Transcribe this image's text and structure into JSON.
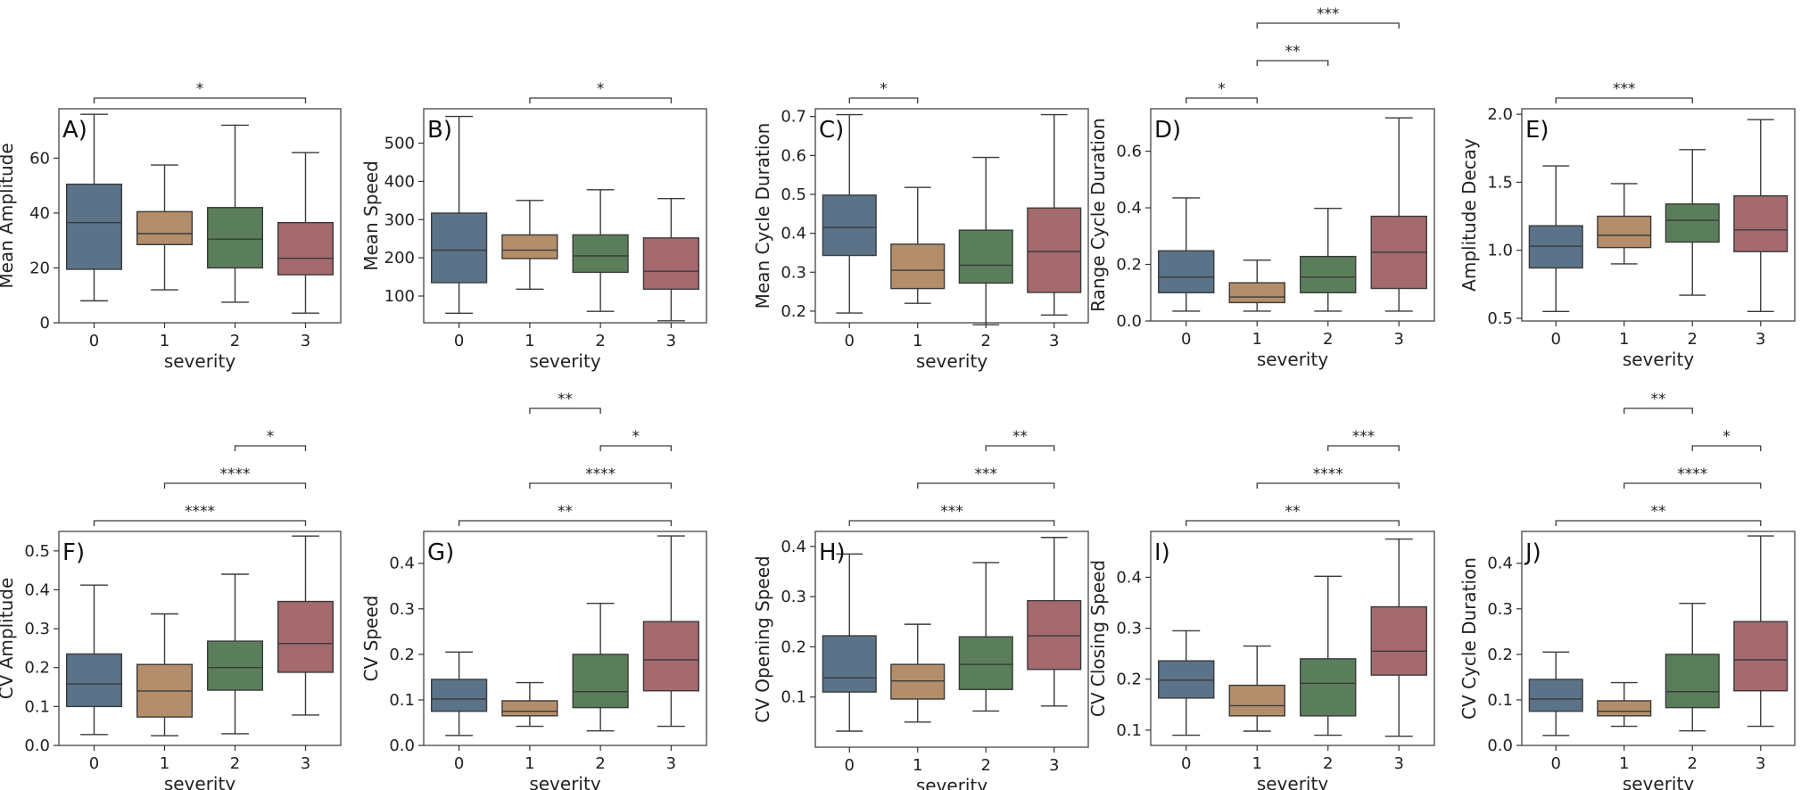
{
  "chart_data": [
    {
      "type": "box",
      "panel_label": "A)",
      "ylabel": "Mean Amplitude",
      "xlabel": "severity",
      "categories": [
        "0",
        "1",
        "2",
        "3"
      ],
      "ylim": [
        0,
        78
      ],
      "yticks": [
        0,
        20,
        40,
        60
      ],
      "boxes": [
        {
          "min": 8,
          "q1": 19.5,
          "median": 36.5,
          "q3": 50.5,
          "max": 76
        },
        {
          "min": 12,
          "q1": 28.5,
          "median": 32.5,
          "q3": 40.5,
          "max": 57.5
        },
        {
          "min": 7.5,
          "q1": 20,
          "median": 30.5,
          "q3": 42,
          "max": 72
        },
        {
          "min": 3.5,
          "q1": 17.5,
          "median": 23.5,
          "q3": 36.5,
          "max": 62
        }
      ],
      "significance": [
        {
          "from": 0,
          "to": 3,
          "label": "*"
        }
      ]
    },
    {
      "type": "box",
      "panel_label": "B)",
      "ylabel": "Mean Speed",
      "xlabel": "severity",
      "categories": [
        "0",
        "1",
        "2",
        "3"
      ],
      "ylim": [
        30,
        590
      ],
      "yticks": [
        100,
        200,
        300,
        400,
        500
      ],
      "boxes": [
        {
          "min": 55,
          "q1": 135,
          "median": 220,
          "q3": 317,
          "max": 570
        },
        {
          "min": 118,
          "q1": 198,
          "median": 220,
          "q3": 260,
          "max": 350
        },
        {
          "min": 60,
          "q1": 162,
          "median": 205,
          "q3": 260,
          "max": 378
        },
        {
          "min": 35,
          "q1": 118,
          "median": 165,
          "q3": 252,
          "max": 355
        }
      ],
      "significance": [
        {
          "from": 1,
          "to": 3,
          "label": "*"
        }
      ]
    },
    {
      "type": "box",
      "panel_label": "C)",
      "ylabel": "Mean Cycle Duration",
      "xlabel": "severity",
      "categories": [
        "0",
        "1",
        "2",
        "3"
      ],
      "ylim": [
        0.17,
        0.72
      ],
      "yticks": [
        0.2,
        0.3,
        0.4,
        0.5,
        0.6,
        0.7
      ],
      "boxes": [
        {
          "min": 0.195,
          "q1": 0.343,
          "median": 0.415,
          "q3": 0.498,
          "max": 0.705
        },
        {
          "min": 0.22,
          "q1": 0.258,
          "median": 0.305,
          "q3": 0.372,
          "max": 0.518
        },
        {
          "min": 0.165,
          "q1": 0.272,
          "median": 0.318,
          "q3": 0.408,
          "max": 0.595
        },
        {
          "min": 0.19,
          "q1": 0.248,
          "median": 0.353,
          "q3": 0.465,
          "max": 0.705
        }
      ],
      "significance": [
        {
          "from": 0,
          "to": 1,
          "label": "*"
        }
      ]
    },
    {
      "type": "box",
      "panel_label": "D)",
      "ylabel": "Range Cycle Duration",
      "xlabel": "severity",
      "categories": [
        "0",
        "1",
        "2",
        "3"
      ],
      "ylim": [
        0,
        0.75
      ],
      "yticks": [
        0.0,
        0.2,
        0.4,
        0.6
      ],
      "boxes": [
        {
          "min": 0.035,
          "q1": 0.1,
          "median": 0.155,
          "q3": 0.248,
          "max": 0.435
        },
        {
          "min": 0.035,
          "q1": 0.065,
          "median": 0.085,
          "q3": 0.135,
          "max": 0.215
        },
        {
          "min": 0.035,
          "q1": 0.1,
          "median": 0.155,
          "q3": 0.228,
          "max": 0.398
        },
        {
          "min": 0.035,
          "q1": 0.115,
          "median": 0.243,
          "q3": 0.37,
          "max": 0.718
        }
      ],
      "significance": [
        {
          "from": 0,
          "to": 1,
          "label": "*"
        },
        {
          "from": 1,
          "to": 2,
          "label": "**"
        },
        {
          "from": 1,
          "to": 3,
          "label": "***"
        }
      ]
    },
    {
      "type": "box",
      "panel_label": "E)",
      "ylabel": "Amplitude Decay",
      "xlabel": "severity",
      "categories": [
        "0",
        "1",
        "2",
        "3"
      ],
      "ylim": [
        0.48,
        2.04
      ],
      "yticks": [
        0.5,
        1.0,
        1.5,
        2.0
      ],
      "boxes": [
        {
          "min": 0.55,
          "q1": 0.87,
          "median": 1.03,
          "q3": 1.18,
          "max": 1.62
        },
        {
          "min": 0.9,
          "q1": 1.02,
          "median": 1.11,
          "q3": 1.25,
          "max": 1.49
        },
        {
          "min": 0.67,
          "q1": 1.06,
          "median": 1.22,
          "q3": 1.34,
          "max": 1.74
        },
        {
          "min": 0.55,
          "q1": 0.99,
          "median": 1.15,
          "q3": 1.4,
          "max": 1.96
        }
      ],
      "significance": [
        {
          "from": 0,
          "to": 2,
          "label": "***"
        }
      ]
    },
    {
      "type": "box",
      "panel_label": "F)",
      "ylabel": "CV Amplitude",
      "xlabel": "severity",
      "categories": [
        "0",
        "1",
        "2",
        "3"
      ],
      "ylim": [
        0,
        0.55
      ],
      "yticks": [
        0.0,
        0.1,
        0.2,
        0.3,
        0.4,
        0.5
      ],
      "boxes": [
        {
          "min": 0.028,
          "q1": 0.1,
          "median": 0.158,
          "q3": 0.235,
          "max": 0.412
        },
        {
          "min": 0.025,
          "q1": 0.073,
          "median": 0.14,
          "q3": 0.208,
          "max": 0.338
        },
        {
          "min": 0.03,
          "q1": 0.142,
          "median": 0.2,
          "q3": 0.268,
          "max": 0.44
        },
        {
          "min": 0.078,
          "q1": 0.188,
          "median": 0.262,
          "q3": 0.37,
          "max": 0.538
        }
      ],
      "significance": [
        {
          "from": 0,
          "to": 3,
          "label": "****"
        },
        {
          "from": 1,
          "to": 3,
          "label": "****"
        },
        {
          "from": 2,
          "to": 3,
          "label": "*"
        }
      ]
    },
    {
      "type": "box",
      "panel_label": "G)",
      "ylabel": "CV Speed",
      "xlabel": "severity",
      "categories": [
        "0",
        "1",
        "2",
        "3"
      ],
      "ylim": [
        0,
        0.47
      ],
      "yticks": [
        0.0,
        0.1,
        0.2,
        0.3,
        0.4
      ],
      "boxes": [
        {
          "min": 0.022,
          "q1": 0.075,
          "median": 0.102,
          "q3": 0.145,
          "max": 0.205
        },
        {
          "min": 0.042,
          "q1": 0.065,
          "median": 0.075,
          "q3": 0.098,
          "max": 0.138
        },
        {
          "min": 0.032,
          "q1": 0.083,
          "median": 0.118,
          "q3": 0.2,
          "max": 0.312
        },
        {
          "min": 0.042,
          "q1": 0.12,
          "median": 0.188,
          "q3": 0.272,
          "max": 0.46
        }
      ],
      "significance": [
        {
          "from": 0,
          "to": 3,
          "label": "**"
        },
        {
          "from": 1,
          "to": 3,
          "label": "****"
        },
        {
          "from": 2,
          "to": 3,
          "label": "*"
        },
        {
          "from": 1,
          "to": 2,
          "label": "**"
        }
      ]
    },
    {
      "type": "box",
      "panel_label": "H)",
      "ylabel": "CV Opening Speed",
      "xlabel": "severity",
      "categories": [
        "0",
        "1",
        "2",
        "3"
      ],
      "ylim": [
        0,
        0.43
      ],
      "yticks": [
        0.1,
        0.2,
        0.3,
        0.4
      ],
      "boxes": [
        {
          "min": 0.032,
          "q1": 0.11,
          "median": 0.138,
          "q3": 0.222,
          "max": 0.385
        },
        {
          "min": 0.05,
          "q1": 0.096,
          "median": 0.132,
          "q3": 0.165,
          "max": 0.245
        },
        {
          "min": 0.072,
          "q1": 0.115,
          "median": 0.165,
          "q3": 0.22,
          "max": 0.368
        },
        {
          "min": 0.082,
          "q1": 0.155,
          "median": 0.222,
          "q3": 0.292,
          "max": 0.418
        }
      ],
      "significance": [
        {
          "from": 0,
          "to": 3,
          "label": "***"
        },
        {
          "from": 1,
          "to": 3,
          "label": "***"
        },
        {
          "from": 2,
          "to": 3,
          "label": "**"
        }
      ]
    },
    {
      "type": "box",
      "panel_label": "I)",
      "ylabel": "CV Closing Speed",
      "xlabel": "severity",
      "categories": [
        "0",
        "1",
        "2",
        "3"
      ],
      "ylim": [
        0.07,
        0.49
      ],
      "yticks": [
        0.1,
        0.2,
        0.3,
        0.4
      ],
      "boxes": [
        {
          "min": 0.09,
          "q1": 0.163,
          "median": 0.198,
          "q3": 0.236,
          "max": 0.295
        },
        {
          "min": 0.098,
          "q1": 0.128,
          "median": 0.148,
          "q3": 0.188,
          "max": 0.265
        },
        {
          "min": 0.09,
          "q1": 0.128,
          "median": 0.192,
          "q3": 0.24,
          "max": 0.402
        },
        {
          "min": 0.088,
          "q1": 0.208,
          "median": 0.255,
          "q3": 0.342,
          "max": 0.475
        }
      ],
      "significance": [
        {
          "from": 0,
          "to": 3,
          "label": "**"
        },
        {
          "from": 1,
          "to": 3,
          "label": "****"
        },
        {
          "from": 2,
          "to": 3,
          "label": "***"
        }
      ]
    },
    {
      "type": "box",
      "panel_label": "J)",
      "ylabel": "CV Cycle Duration",
      "xlabel": "severity",
      "categories": [
        "0",
        "1",
        "2",
        "3"
      ],
      "ylim": [
        0,
        0.47
      ],
      "yticks": [
        0.0,
        0.1,
        0.2,
        0.3,
        0.4
      ],
      "boxes": [
        {
          "min": 0.022,
          "q1": 0.075,
          "median": 0.102,
          "q3": 0.145,
          "max": 0.205
        },
        {
          "min": 0.042,
          "q1": 0.065,
          "median": 0.075,
          "q3": 0.098,
          "max": 0.138
        },
        {
          "min": 0.032,
          "q1": 0.083,
          "median": 0.118,
          "q3": 0.2,
          "max": 0.312
        },
        {
          "min": 0.042,
          "q1": 0.12,
          "median": 0.188,
          "q3": 0.272,
          "max": 0.46
        }
      ],
      "significance": [
        {
          "from": 0,
          "to": 3,
          "label": "**"
        },
        {
          "from": 1,
          "to": 3,
          "label": "****"
        },
        {
          "from": 2,
          "to": 3,
          "label": "*"
        },
        {
          "from": 1,
          "to": 2,
          "label": "**"
        }
      ]
    }
  ],
  "colors": {
    "box0": "#5b7388",
    "box1": "#b48e6a",
    "box2": "#5a7e5a",
    "box3": "#a46a6e",
    "line": "#3a3a3a"
  }
}
